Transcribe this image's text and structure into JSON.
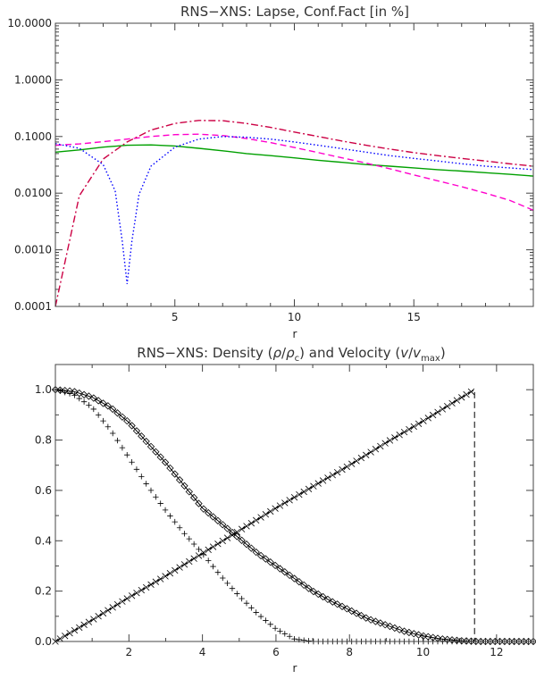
{
  "chart_data": [
    {
      "type": "line",
      "title": "RNS−XNS: Lapse, Conf.Fact [in %]",
      "xlabel": "r",
      "ylabel": "",
      "xlim": [
        0,
        20
      ],
      "ylim": [
        0.0001,
        10
      ],
      "yscale": "log",
      "x_ticks": [
        "5",
        "10",
        "15"
      ],
      "x_tick_values": [
        5,
        10,
        15
      ],
      "y_ticks": [
        "10.0000",
        "1.0000",
        "0.1000",
        "0.0100",
        "0.0010",
        "0.0001"
      ],
      "y_tick_values": [
        10,
        1,
        0.1,
        0.01,
        0.001,
        0.0001
      ],
      "grid": false,
      "x": [
        0,
        1,
        2,
        3,
        4,
        5,
        6,
        7,
        8,
        9,
        10,
        11,
        12,
        13,
        14,
        15,
        16,
        17,
        18,
        19,
        20
      ],
      "series": [
        {
          "color": "#00a000",
          "dash": "solid",
          "values": [
            0.053,
            0.058,
            0.065,
            0.07,
            0.071,
            0.068,
            0.062,
            0.056,
            0.05,
            0.046,
            0.042,
            0.038,
            0.035,
            0.032,
            0.03,
            0.028,
            0.026,
            0.0245,
            0.023,
            0.0215,
            0.02
          ]
        },
        {
          "color": "#ff00cc",
          "dash": "dash",
          "values": [
            0.07,
            0.074,
            0.081,
            0.09,
            0.1,
            0.108,
            0.11,
            0.104,
            0.092,
            0.078,
            0.064,
            0.052,
            0.042,
            0.034,
            0.027,
            0.021,
            0.0165,
            0.013,
            0.01,
            0.0075,
            0.005
          ]
        },
        {
          "color": "#cc0044",
          "dash": "dashdot",
          "values": [
            0.0001,
            0.009,
            0.04,
            0.08,
            0.13,
            0.17,
            0.192,
            0.19,
            0.17,
            0.145,
            0.12,
            0.1,
            0.083,
            0.07,
            0.06,
            0.052,
            0.046,
            0.041,
            0.037,
            0.033,
            0.03
          ]
        },
        {
          "color": "#0000ff",
          "dash": "dot",
          "x": [
            0,
            1,
            2,
            2.5,
            2.8,
            3.0,
            3.2,
            3.5,
            4,
            5,
            6,
            7,
            8,
            9,
            10,
            11,
            12,
            13,
            14,
            15,
            16,
            17,
            18,
            19,
            20
          ],
          "values": [
            0.075,
            0.062,
            0.032,
            0.011,
            0.0014,
            0.00025,
            0.0014,
            0.0095,
            0.03,
            0.065,
            0.09,
            0.1,
            0.097,
            0.09,
            0.08,
            0.07,
            0.061,
            0.053,
            0.046,
            0.041,
            0.037,
            0.033,
            0.03,
            0.028,
            0.026
          ]
        }
      ]
    },
    {
      "type": "line",
      "title_parts": [
        "RNS−XNS: Density (",
        "ρ",
        "/",
        "ρ",
        "c",
        ") and Velocity (",
        "v",
        "/",
        "v",
        "max",
        ")"
      ],
      "xlabel": "r",
      "ylabel": "",
      "xlim": [
        0,
        13
      ],
      "ylim": [
        0,
        1.1
      ],
      "x_ticks": [
        "2",
        "4",
        "6",
        "8",
        "10",
        "12"
      ],
      "x_tick_values": [
        2,
        4,
        6,
        8,
        10,
        12
      ],
      "y_ticks": [
        "0.0",
        "0.2",
        "0.4",
        "0.6",
        "0.8",
        "1.0"
      ],
      "y_tick_values": [
        0,
        0.2,
        0.4,
        0.6,
        0.8,
        1.0
      ],
      "grid": false,
      "series": [
        {
          "marker": "diamond",
          "dash": "solid",
          "color": "#000000",
          "x": [
            0,
            0.5,
            1,
            1.5,
            2,
            2.5,
            3,
            3.5,
            4,
            4.5,
            5,
            5.5,
            6,
            6.5,
            7,
            7.5,
            8,
            8.5,
            9,
            9.5,
            10,
            10.5,
            11,
            11.5,
            12,
            12.5,
            13
          ],
          "values": [
            1.0,
            0.993,
            0.97,
            0.93,
            0.87,
            0.79,
            0.71,
            0.62,
            0.53,
            0.47,
            0.41,
            0.35,
            0.3,
            0.25,
            0.2,
            0.16,
            0.125,
            0.09,
            0.065,
            0.04,
            0.022,
            0.01,
            0.003,
            0.0,
            0.0,
            0.0,
            0.0
          ]
        },
        {
          "marker": "plus",
          "dash": "none",
          "color": "#000000",
          "x": [
            0,
            0.5,
            1,
            1.5,
            2,
            2.5,
            3,
            3.5,
            4,
            4.5,
            5,
            5.5,
            6,
            6.5,
            7,
            7.5,
            8,
            8.5,
            9,
            9.5,
            10,
            10.5,
            11,
            11.5,
            12,
            12.5,
            13
          ],
          "values": [
            1.0,
            0.98,
            0.93,
            0.84,
            0.73,
            0.62,
            0.52,
            0.43,
            0.35,
            0.26,
            0.18,
            0.11,
            0.05,
            0.01,
            0.0,
            0.0,
            0.0,
            0.0,
            0.0,
            0.0,
            0.0,
            0.0,
            0.0,
            0.0,
            0.0,
            0.0,
            0.0
          ]
        },
        {
          "marker": "cross",
          "dash": "dash",
          "color": "#000000",
          "x": [
            0,
            1,
            2,
            3,
            4,
            5,
            6,
            7,
            8,
            9,
            10,
            11,
            11.4,
            11.4,
            12,
            13
          ],
          "values": [
            0.0,
            0.085,
            0.175,
            0.26,
            0.35,
            0.44,
            0.53,
            0.615,
            0.7,
            0.79,
            0.875,
            0.965,
            1.0,
            0.0,
            0.0,
            0.0
          ]
        }
      ]
    }
  ]
}
